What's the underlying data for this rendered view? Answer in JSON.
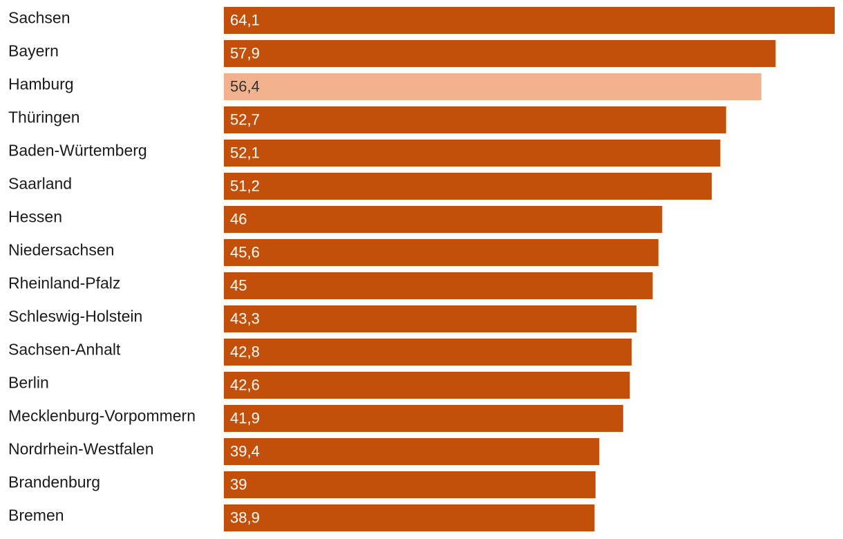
{
  "chart_data": {
    "type": "bar",
    "orientation": "horizontal",
    "title": "",
    "xlabel": "",
    "ylabel": "",
    "xlim": [
      0,
      64.1
    ],
    "grid": false,
    "decimal_separator": ",",
    "categories": [
      "Sachsen",
      "Bayern",
      "Hamburg",
      "Thüringen",
      "Baden-Würtemberg",
      "Saarland",
      "Hessen",
      "Niedersachsen",
      "Rheinland-Pfalz",
      "Schleswig-Holstein",
      "Sachsen-Anhalt",
      "Berlin",
      "Mecklenburg-Vorpommern",
      "Nordrhein-Westfalen",
      "Brandenburg",
      "Bremen"
    ],
    "values": [
      64.1,
      57.9,
      56.4,
      52.7,
      52.1,
      51.2,
      46,
      45.6,
      45,
      43.3,
      42.8,
      42.6,
      41.9,
      39.4,
      39,
      38.9
    ],
    "value_labels": [
      "64,1",
      "57,9",
      "56,4",
      "52,7",
      "52,1",
      "51,2",
      "46",
      "45,6",
      "45",
      "43,3",
      "42,8",
      "42,6",
      "41,9",
      "39,4",
      "39",
      "38,9"
    ],
    "highlight_category": "Hamburg",
    "colors": {
      "bar": "#c2500a",
      "highlight_bar": "#f2b28d",
      "bar_label_text": "#ffffff",
      "highlight_label_text": "#333333",
      "category_text": "#1a1a1a"
    }
  }
}
